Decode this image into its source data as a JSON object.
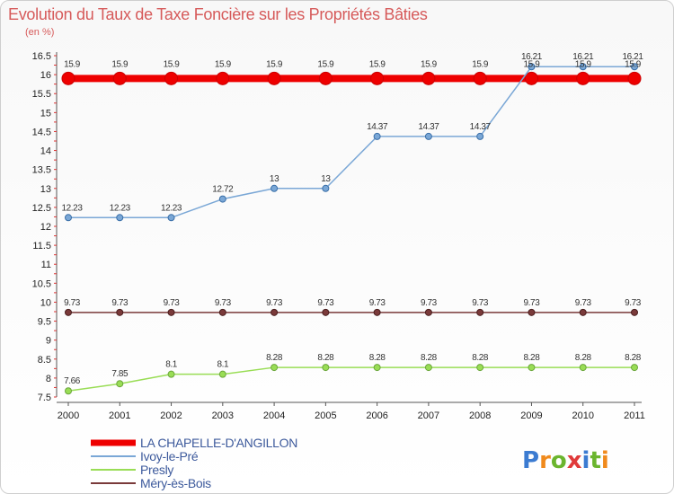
{
  "header": {
    "title": "Evolution du Taux de Taxe Foncière sur les Propriétés Bâties",
    "subtitle": "(en %)"
  },
  "brand": {
    "logo_text": "Proxiti"
  },
  "chart_data": {
    "type": "line",
    "title": "Evolution du Taux de Taxe Foncière sur les Propriétés Bâties",
    "ylabel": "(en %)",
    "xlabel": "",
    "categories": [
      "2000",
      "2001",
      "2002",
      "2003",
      "2004",
      "2005",
      "2006",
      "2007",
      "2008",
      "2009",
      "2010",
      "2011"
    ],
    "ylim": [
      7.5,
      16.5
    ],
    "yticks": [
      7.5,
      8,
      8.5,
      9,
      9.5,
      10,
      10.5,
      11,
      11.5,
      12,
      12.5,
      13,
      13.5,
      14,
      14.5,
      15,
      15.5,
      16,
      16.5
    ],
    "legend_position": "bottom-left",
    "series": [
      {
        "name": "LA CHAPELLE-D'ANGILLON",
        "color": "#ee0000",
        "values": [
          15.9,
          15.9,
          15.9,
          15.9,
          15.9,
          15.9,
          15.9,
          15.9,
          15.9,
          15.9,
          15.9,
          15.9
        ],
        "labels": [
          "15.9",
          "15.9",
          "15.9",
          "15.9",
          "15.9",
          "15.9",
          "15.9",
          "15.9",
          "15.9",
          "15.9",
          "15.9",
          "15.9"
        ]
      },
      {
        "name": "Ivoy-le-Pré",
        "color": "#7aa7d6",
        "values": [
          12.23,
          12.23,
          12.23,
          12.72,
          13,
          13,
          14.37,
          14.37,
          14.37,
          16.21,
          16.21,
          16.21
        ],
        "labels": [
          "12.23",
          "12.23",
          "12.23",
          "12.72",
          "13",
          "13",
          "14.37",
          "14.37",
          "14.37",
          "16.21",
          "16.21",
          "16.21"
        ]
      },
      {
        "name": "Presly",
        "color": "#99dd55",
        "values": [
          7.66,
          7.85,
          8.1,
          8.1,
          8.28,
          8.28,
          8.28,
          8.28,
          8.28,
          8.28,
          8.28,
          8.28
        ],
        "labels": [
          "7.66",
          "7.85",
          "8.1",
          "8.1",
          "8.28",
          "8.28",
          "8.28",
          "8.28",
          "8.28",
          "8.28",
          "8.28",
          "8.28"
        ]
      },
      {
        "name": "Méry-ès-Bois",
        "color": "#7a3a3a",
        "values": [
          9.73,
          9.73,
          9.73,
          9.73,
          9.73,
          9.73,
          9.73,
          9.73,
          9.73,
          9.73,
          9.73,
          9.73
        ],
        "labels": [
          "9.73",
          "9.73",
          "9.73",
          "9.73",
          "9.73",
          "9.73",
          "9.73",
          "9.73",
          "9.73",
          "9.73",
          "9.73",
          "9.73"
        ]
      }
    ]
  }
}
